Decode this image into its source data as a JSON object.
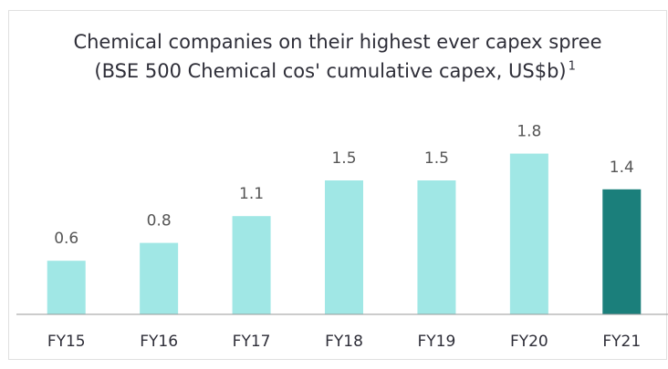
{
  "chart_data": {
    "type": "bar",
    "title": "Chemical companies on their highest ever capex spree",
    "subtitle": "(BSE 500 Chemical cos' cumulative capex, US$b)",
    "subtitle_note": "1",
    "categories": [
      "FY15",
      "FY16",
      "FY17",
      "FY18",
      "FY19",
      "FY20",
      "FY21"
    ],
    "values": [
      0.6,
      0.8,
      1.1,
      1.5,
      1.5,
      1.8,
      1.4
    ],
    "colors": [
      "#a0e7e5",
      "#a0e7e5",
      "#a0e7e5",
      "#a0e7e5",
      "#a0e7e5",
      "#a0e7e5",
      "#1b7f7b"
    ],
    "ylim": [
      0,
      2
    ]
  }
}
